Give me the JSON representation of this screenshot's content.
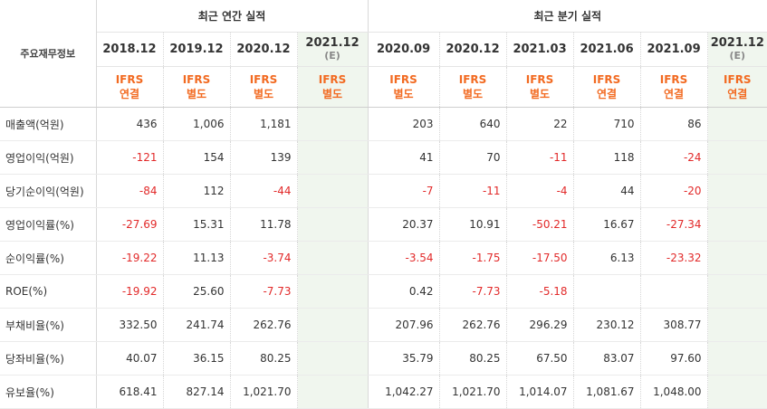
{
  "header": {
    "corner_label": "주요재무정보",
    "annual_group": "최근 연간 실적",
    "quarterly_group": "최근 분기 실적"
  },
  "periods": [
    {
      "label": "2018.12",
      "est": "",
      "basis": "IFRS",
      "scope": "연결"
    },
    {
      "label": "2019.12",
      "est": "",
      "basis": "IFRS",
      "scope": "별도"
    },
    {
      "label": "2020.12",
      "est": "",
      "basis": "IFRS",
      "scope": "별도"
    },
    {
      "label": "2021.12",
      "est": "(E)",
      "basis": "IFRS",
      "scope": "별도"
    },
    {
      "label": "2020.09",
      "est": "",
      "basis": "IFRS",
      "scope": "별도"
    },
    {
      "label": "2020.12",
      "est": "",
      "basis": "IFRS",
      "scope": "별도"
    },
    {
      "label": "2021.03",
      "est": "",
      "basis": "IFRS",
      "scope": "별도"
    },
    {
      "label": "2021.06",
      "est": "",
      "basis": "IFRS",
      "scope": "연결"
    },
    {
      "label": "2021.09",
      "est": "",
      "basis": "IFRS",
      "scope": "연결"
    },
    {
      "label": "2021.12",
      "est": "(E)",
      "basis": "IFRS",
      "scope": "연결"
    }
  ],
  "rows": [
    {
      "label": "매출액(억원)",
      "values": [
        "436",
        "1,006",
        "1,181",
        "",
        "203",
        "640",
        "22",
        "710",
        "86",
        ""
      ]
    },
    {
      "label": "영업이익(억원)",
      "values": [
        "-121",
        "154",
        "139",
        "",
        "41",
        "70",
        "-11",
        "118",
        "-24",
        ""
      ]
    },
    {
      "label": "당기순이익(억원)",
      "values": [
        "-84",
        "112",
        "-44",
        "",
        "-7",
        "-11",
        "-4",
        "44",
        "-20",
        ""
      ]
    },
    {
      "label": "영업이익률(%)",
      "values": [
        "-27.69",
        "15.31",
        "11.78",
        "",
        "20.37",
        "10.91",
        "-50.21",
        "16.67",
        "-27.34",
        ""
      ]
    },
    {
      "label": "순이익률(%)",
      "values": [
        "-19.22",
        "11.13",
        "-3.74",
        "",
        "-3.54",
        "-1.75",
        "-17.50",
        "6.13",
        "-23.32",
        ""
      ]
    },
    {
      "label": "ROE(%)",
      "values": [
        "-19.92",
        "25.60",
        "-7.73",
        "",
        "0.42",
        "-7.73",
        "-5.18",
        "",
        "",
        ""
      ]
    },
    {
      "label": "부채비율(%)",
      "values": [
        "332.50",
        "241.74",
        "262.76",
        "",
        "207.96",
        "262.76",
        "296.29",
        "230.12",
        "308.77",
        ""
      ]
    },
    {
      "label": "당좌비율(%)",
      "values": [
        "40.07",
        "36.15",
        "80.25",
        "",
        "35.79",
        "80.25",
        "67.50",
        "83.07",
        "97.60",
        ""
      ]
    },
    {
      "label": "유보율(%)",
      "values": [
        "618.41",
        "827.14",
        "1,021.70",
        "",
        "1,042.27",
        "1,021.70",
        "1,014.07",
        "1,081.67",
        "1,048.00",
        ""
      ]
    }
  ],
  "colors": {
    "ifrs_accent": "#f26a21",
    "negative": "#e22a2a",
    "estimate_bg": "#f0f6ee"
  }
}
